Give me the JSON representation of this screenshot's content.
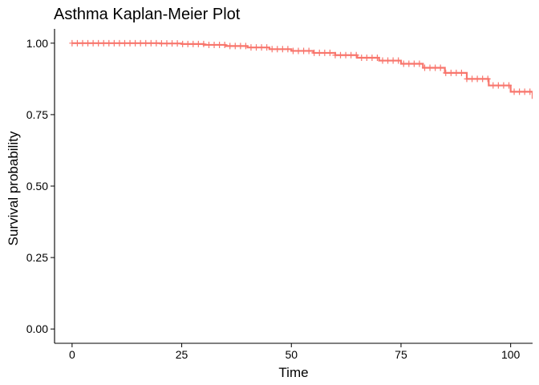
{
  "chart_data": {
    "type": "line",
    "title": "Asthma Kaplan-Meier Plot",
    "xlabel": "Time",
    "ylabel": "Survival probability",
    "xlim": [
      -4,
      105
    ],
    "ylim": [
      -0.05,
      1.05
    ],
    "x_ticks": [
      0,
      25,
      50,
      75,
      100
    ],
    "y_ticks": [
      0.0,
      0.25,
      0.5,
      0.75,
      1.0
    ],
    "x_tick_labels": [
      "0",
      "25",
      "50",
      "75",
      "100"
    ],
    "y_tick_labels": [
      "0.00",
      "0.25",
      "0.50",
      "0.75",
      "1.00"
    ],
    "grid": false,
    "legend": "none",
    "censor_marks": true,
    "series": [
      {
        "color": "#F8766D",
        "x": [
          0,
          5,
          10,
          15,
          20,
          25,
          30,
          35,
          40,
          45,
          50,
          55,
          60,
          65,
          70,
          75,
          80,
          85,
          90,
          95,
          100,
          105
        ],
        "y": [
          1.0,
          1.0,
          1.0,
          1.0,
          0.999,
          0.997,
          0.994,
          0.99,
          0.985,
          0.979,
          0.973,
          0.966,
          0.958,
          0.949,
          0.939,
          0.928,
          0.914,
          0.896,
          0.875,
          0.852,
          0.83,
          0.805
        ]
      }
    ]
  }
}
